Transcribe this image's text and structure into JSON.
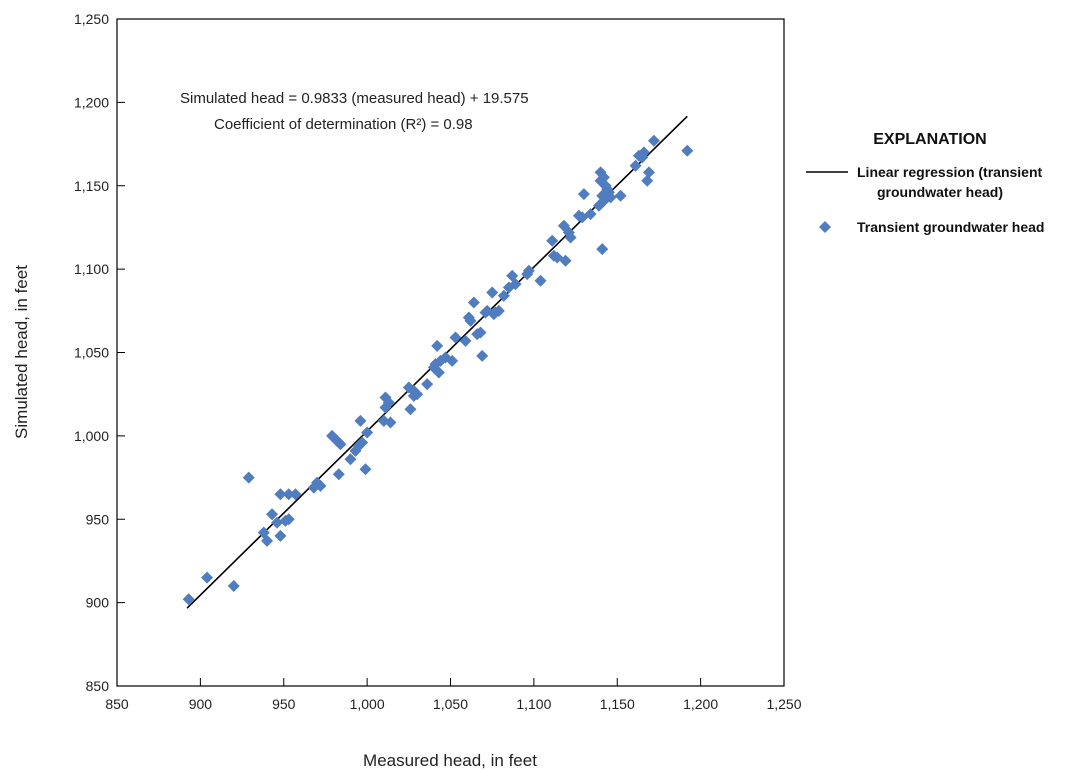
{
  "chart_data": {
    "type": "scatter",
    "title": "",
    "xlabel": "Measured head, in feet",
    "ylabel": "Simulated head, in feet",
    "xlim": [
      850,
      1250
    ],
    "ylim": [
      850,
      1250
    ],
    "x_ticks": [
      850,
      900,
      950,
      1000,
      1050,
      1100,
      1150,
      1200,
      1250
    ],
    "y_ticks": [
      850,
      900,
      950,
      1000,
      1050,
      1100,
      1150,
      1200,
      1250
    ],
    "x_tick_labels": [
      "850",
      "900",
      "950",
      "1,000",
      "1,050",
      "1,100",
      "1,150",
      "1,200",
      "1,250"
    ],
    "y_tick_labels": [
      "850",
      "900",
      "950",
      "1,000",
      "1,050",
      "1,100",
      "1,150",
      "1,200",
      "1,250"
    ],
    "grid": false,
    "annotations": [
      "Simulated head = 0.9833 (measured head) + 19.575",
      "Coefficient of determination (R²) = 0.98"
    ],
    "legend": {
      "title": "EXPLANATION",
      "position": "right",
      "line_label_1": "Linear regression (transient",
      "line_label_2": "groundwater head)",
      "points_label": "Transient groundwater head"
    },
    "regression": {
      "slope": 0.9833,
      "intercept": 19.575,
      "x_range": [
        892,
        1192
      ],
      "color": "#000000"
    },
    "series": [
      {
        "name": "Transient groundwater head",
        "color": "#4f7dbf",
        "marker": "diamond",
        "points": [
          [
            893,
            902
          ],
          [
            904,
            915
          ],
          [
            920,
            910
          ],
          [
            929,
            975
          ],
          [
            938,
            942
          ],
          [
            940,
            937
          ],
          [
            943,
            953
          ],
          [
            946,
            948
          ],
          [
            948,
            965
          ],
          [
            948,
            940
          ],
          [
            951,
            949
          ],
          [
            953,
            950
          ],
          [
            953,
            965
          ],
          [
            957,
            965
          ],
          [
            968,
            969
          ],
          [
            970,
            972
          ],
          [
            972,
            970
          ],
          [
            979,
            1000
          ],
          [
            982,
            997
          ],
          [
            983,
            977
          ],
          [
            984,
            995
          ],
          [
            990,
            986
          ],
          [
            993,
            991
          ],
          [
            995,
            994
          ],
          [
            996,
            1009
          ],
          [
            997,
            996
          ],
          [
            999,
            980
          ],
          [
            1000,
            1002
          ],
          [
            1010,
            1009
          ],
          [
            1011,
            1017
          ],
          [
            1011,
            1023
          ],
          [
            1013,
            1020
          ],
          [
            1014,
            1008
          ],
          [
            1025,
            1029
          ],
          [
            1026,
            1016
          ],
          [
            1028,
            1027
          ],
          [
            1028,
            1024
          ],
          [
            1030,
            1025
          ],
          [
            1036,
            1031
          ],
          [
            1040,
            1041
          ],
          [
            1041,
            1043
          ],
          [
            1042,
            1054
          ],
          [
            1043,
            1038
          ],
          [
            1044,
            1045
          ],
          [
            1047,
            1047
          ],
          [
            1051,
            1045
          ],
          [
            1053,
            1059
          ],
          [
            1059,
            1057
          ],
          [
            1061,
            1071
          ],
          [
            1062,
            1069
          ],
          [
            1064,
            1080
          ],
          [
            1066,
            1061
          ],
          [
            1068,
            1062
          ],
          [
            1069,
            1048
          ],
          [
            1071,
            1074
          ],
          [
            1072,
            1075
          ],
          [
            1075,
            1086
          ],
          [
            1076,
            1073
          ],
          [
            1077,
            1074
          ],
          [
            1079,
            1075
          ],
          [
            1082,
            1084
          ],
          [
            1085,
            1089
          ],
          [
            1087,
            1096
          ],
          [
            1089,
            1091
          ],
          [
            1096,
            1097
          ],
          [
            1097,
            1099
          ],
          [
            1104,
            1093
          ],
          [
            1111,
            1117
          ],
          [
            1112,
            1108
          ],
          [
            1114,
            1107
          ],
          [
            1118,
            1126
          ],
          [
            1119,
            1105
          ],
          [
            1121,
            1122
          ],
          [
            1122,
            1119
          ],
          [
            1127,
            1132
          ],
          [
            1129,
            1131
          ],
          [
            1130,
            1145
          ],
          [
            1134,
            1133
          ],
          [
            1139,
            1138
          ],
          [
            1140,
            1158
          ],
          [
            1140,
            1153
          ],
          [
            1141,
            1112
          ],
          [
            1141,
            1144
          ],
          [
            1142,
            1155
          ],
          [
            1142,
            1141
          ],
          [
            1143,
            1150
          ],
          [
            1144,
            1148
          ],
          [
            1145,
            1146
          ],
          [
            1146,
            1143
          ],
          [
            1152,
            1144
          ],
          [
            1161,
            1162
          ],
          [
            1163,
            1168
          ],
          [
            1165,
            1167
          ],
          [
            1166,
            1170
          ],
          [
            1168,
            1153
          ],
          [
            1169,
            1158
          ],
          [
            1172,
            1177
          ],
          [
            1192,
            1171
          ]
        ]
      }
    ]
  }
}
